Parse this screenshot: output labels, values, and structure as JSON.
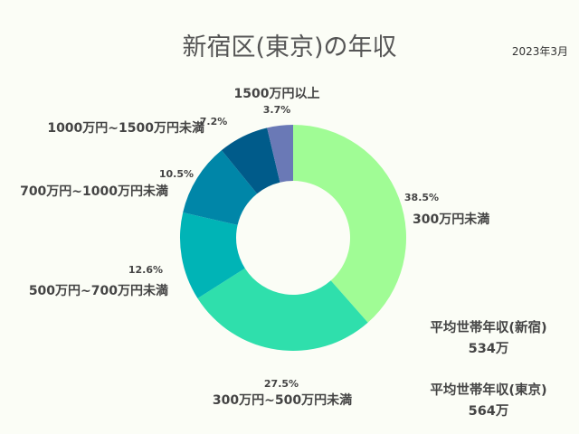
{
  "title": "新宿区(東京)の年収",
  "date": "2023年3月",
  "chart_data": {
    "type": "pie",
    "donut": true,
    "title": "新宿区(東京)の年収",
    "categories": [
      "300万円未満",
      "300万円~500万円未満",
      "500万円~700万円未満",
      "700万円~1000万円未満",
      "1000万円~1500万円未満",
      "1500万円以上"
    ],
    "values": [
      38.5,
      27.5,
      12.6,
      10.5,
      7.2,
      3.7
    ],
    "value_labels": [
      "38.5%",
      "27.5%",
      "12.6%",
      "10.5%",
      "7.2%",
      "3.7%"
    ],
    "colors": [
      "#a0fc95",
      "#2fdfac",
      "#00b4b6",
      "#0086a8",
      "#005b8a",
      "#6a79b6"
    ]
  },
  "notes": [
    {
      "label": "平均世帯年収(新宿)",
      "value": "534万"
    },
    {
      "label": "平均世帯年収(東京)",
      "value": "564万"
    }
  ]
}
